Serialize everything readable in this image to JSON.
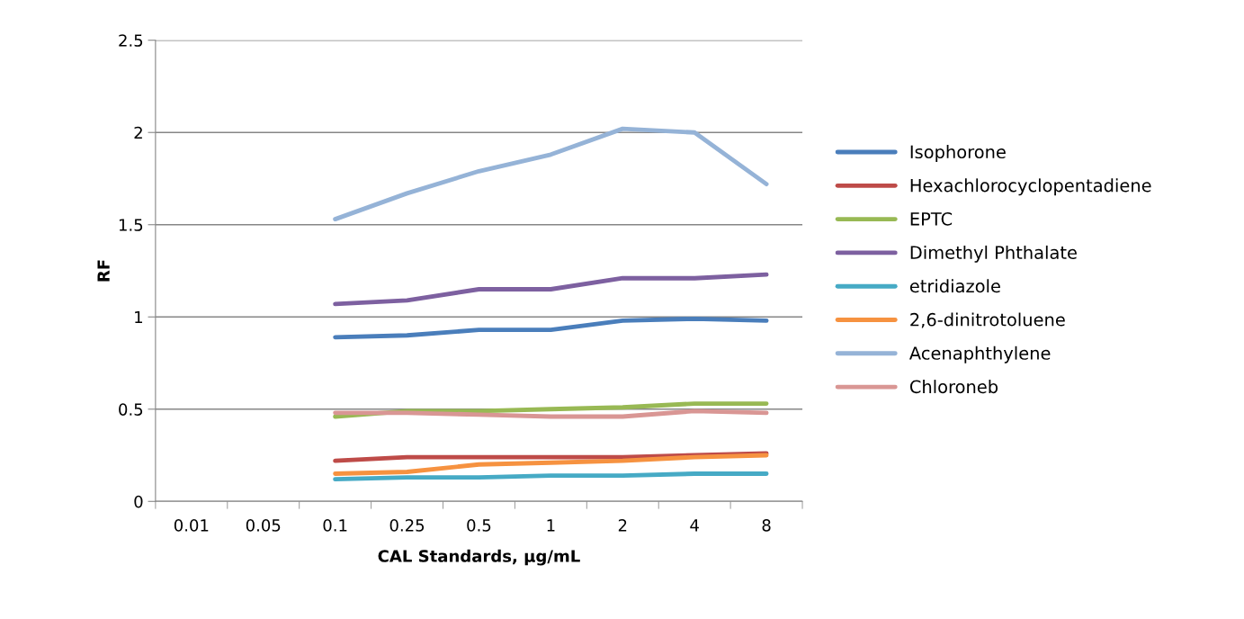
{
  "chart_data": {
    "type": "line",
    "xlabel": "CAL Standards, µg/mL",
    "ylabel": "RF",
    "categories": [
      "0.01",
      "0.05",
      "0.1",
      "0.25",
      "0.5",
      "1",
      "2",
      "4",
      "8"
    ],
    "ylim": [
      0,
      2.5
    ],
    "yticks": [
      0,
      0.5,
      1,
      1.5,
      2,
      2.5
    ],
    "grid": "y",
    "legend": "right",
    "marker": "none",
    "line_style": "solid",
    "series": [
      {
        "name": "Isophorone",
        "color": "#4a7ebb",
        "values": [
          null,
          null,
          0.89,
          0.9,
          0.93,
          0.93,
          0.98,
          0.99,
          0.98
        ]
      },
      {
        "name": "Hexachlorocyclopentadiene",
        "color": "#be4b48",
        "values": [
          null,
          null,
          0.22,
          0.24,
          0.24,
          0.24,
          0.24,
          0.25,
          0.26
        ]
      },
      {
        "name": "EPTC",
        "color": "#98b954",
        "values": [
          null,
          null,
          0.46,
          0.49,
          0.49,
          0.5,
          0.51,
          0.53,
          0.53
        ]
      },
      {
        "name": "Dimethyl Phthalate",
        "color": "#7d60a0",
        "values": [
          null,
          null,
          1.07,
          1.09,
          1.15,
          1.15,
          1.21,
          1.21,
          1.23
        ]
      },
      {
        "name": "etridiazole",
        "color": "#46aac5",
        "values": [
          null,
          null,
          0.12,
          0.13,
          0.13,
          0.14,
          0.14,
          0.15,
          0.15
        ]
      },
      {
        "name": "2,6-dinitrotoluene",
        "color": "#f69240",
        "values": [
          null,
          null,
          0.15,
          0.16,
          0.2,
          0.21,
          0.22,
          0.24,
          0.25
        ]
      },
      {
        "name": "Acenaphthylene",
        "color": "#95b3d7",
        "values": [
          null,
          null,
          1.53,
          1.67,
          1.79,
          1.88,
          2.02,
          2.0,
          1.72
        ]
      },
      {
        "name": "Chloroneb",
        "color": "#d99694",
        "values": [
          null,
          null,
          0.48,
          0.48,
          0.47,
          0.46,
          0.46,
          0.49,
          0.48
        ]
      }
    ]
  }
}
